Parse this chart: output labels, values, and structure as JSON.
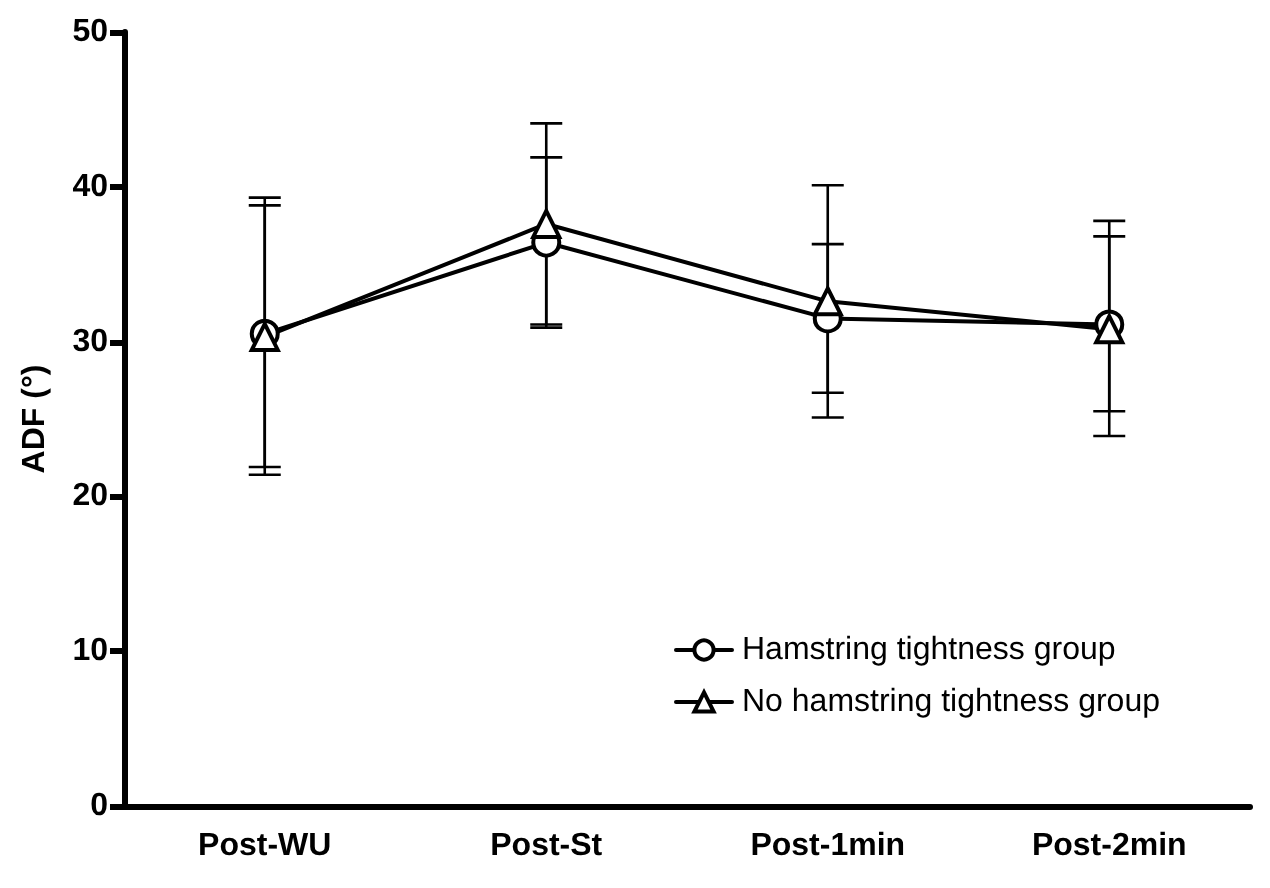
{
  "chart_data": {
    "type": "line",
    "ylabel": "ADF (°)",
    "categories": [
      "Post-WU",
      "Post-St",
      "Post-1min",
      "Post-2min"
    ],
    "series": [
      {
        "name": "Hamstring tightness group",
        "color": "#000000",
        "marker": "circle",
        "values": [
          30.5,
          36.4,
          31.5,
          31.1
        ],
        "errors": [
          [
            21.4,
            39.3
          ],
          [
            30.9,
            41.9
          ],
          [
            26.7,
            36.3
          ],
          [
            25.5,
            36.8
          ]
        ]
      },
      {
        "name": "No hamstring tightness group",
        "color": "#000000",
        "marker": "triangle",
        "values": [
          30.3,
          37.6,
          32.6,
          30.8
        ],
        "errors": [
          [
            21.9,
            38.8
          ],
          [
            31.1,
            44.1
          ],
          [
            25.1,
            40.1
          ],
          [
            23.9,
            37.8
          ]
        ]
      }
    ],
    "ylim": [
      0,
      50
    ],
    "yticks": [
      0,
      10,
      20,
      30,
      40,
      50
    ],
    "legend": "bottom right",
    "line_style": "solid"
  }
}
